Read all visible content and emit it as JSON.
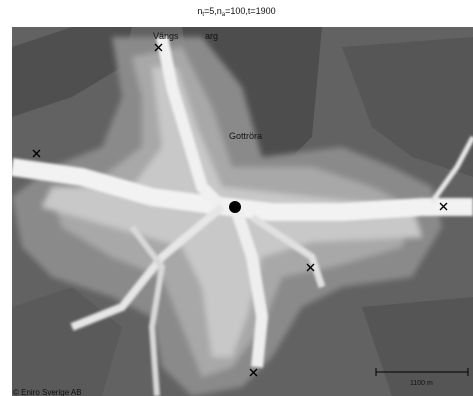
{
  "title": {
    "n_t_base": "n",
    "n_t_sub": "t",
    "n_t_value": "=5,",
    "n_a_base": "n",
    "n_a_sub": "a",
    "n_a_value": "=100,t=1900"
  },
  "map": {
    "place_labels": [
      {
        "name": "Vängs",
        "text": "Vängs"
      },
      {
        "name": "arg",
        "text": "arg"
      },
      {
        "name": "gottrora",
        "text": "Gottröra"
      }
    ],
    "copyright": "© Eniro Sverige AB",
    "scale_bar": {
      "label": "1100 m"
    },
    "markers": {
      "center_icon": "filled-circle",
      "node_icon": "x-mark",
      "node_count": 6
    },
    "colors": {
      "background": "#626262",
      "water": "#4a4a4a",
      "road": "#ffffff",
      "marker": "#000000"
    }
  }
}
